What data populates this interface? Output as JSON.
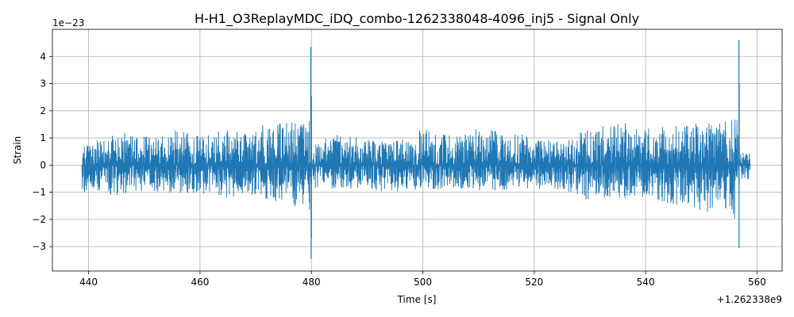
{
  "chart_data": {
    "type": "line",
    "title": "H-H1_O3ReplayMDC_iDQ_combo-1262338048-4096_inj5 - Signal Only",
    "xlabel": "Time [s]",
    "ylabel": "Strain",
    "x_offset_label": "+1.262338e9",
    "y_scale_label": "1e−23",
    "xlim": [
      433.5,
      564.5
    ],
    "ylim": [
      -3.9,
      5.0
    ],
    "x_ticks": [
      440,
      460,
      480,
      500,
      520,
      540,
      560
    ],
    "x_tick_labels": [
      "440",
      "460",
      "480",
      "500",
      "520",
      "540",
      "560"
    ],
    "y_ticks": [
      -3,
      -2,
      -1,
      0,
      1,
      2,
      3,
      4
    ],
    "y_tick_labels": [
      "−3",
      "−2",
      "−1",
      "0",
      "1",
      "2",
      "3",
      "4"
    ],
    "grid": true,
    "line_color": "#1f77b4",
    "series": [
      {
        "x_start": 438.8,
        "x_end": 558.8,
        "envelope": [
          {
            "x": 438.8,
            "max": 0.7,
            "min": -1.0
          },
          {
            "x": 442,
            "max": 0.95,
            "min": -0.95
          },
          {
            "x": 445,
            "max": 1.25,
            "min": -1.2
          },
          {
            "x": 450,
            "max": 1.05,
            "min": -0.95
          },
          {
            "x": 455,
            "max": 1.3,
            "min": -1.05
          },
          {
            "x": 460,
            "max": 1.1,
            "min": -1.05
          },
          {
            "x": 465,
            "max": 1.35,
            "min": -1.25
          },
          {
            "x": 470,
            "max": 1.45,
            "min": -1.1
          },
          {
            "x": 475,
            "max": 1.55,
            "min": -1.45
          },
          {
            "x": 478,
            "max": 1.65,
            "min": -1.55
          },
          {
            "x": 479.8,
            "max": 1.7,
            "min": -1.7
          },
          {
            "x": 480.05,
            "max": 0.85,
            "min": -0.85
          },
          {
            "x": 485,
            "max": 1.2,
            "min": -0.9
          },
          {
            "x": 490,
            "max": 0.95,
            "min": -0.95
          },
          {
            "x": 495,
            "max": 0.95,
            "min": -1.0
          },
          {
            "x": 500,
            "max": 1.35,
            "min": -0.95
          },
          {
            "x": 505,
            "max": 1.1,
            "min": -0.95
          },
          {
            "x": 510,
            "max": 1.35,
            "min": -1.0
          },
          {
            "x": 515,
            "max": 1.3,
            "min": -0.9
          },
          {
            "x": 520,
            "max": 1.0,
            "min": -0.85
          },
          {
            "x": 525,
            "max": 0.9,
            "min": -0.95
          },
          {
            "x": 530,
            "max": 1.45,
            "min": -1.35
          },
          {
            "x": 535,
            "max": 1.6,
            "min": -1.25
          },
          {
            "x": 540,
            "max": 1.35,
            "min": -1.3
          },
          {
            "x": 545,
            "max": 1.45,
            "min": -1.45
          },
          {
            "x": 550,
            "max": 1.55,
            "min": -1.7
          },
          {
            "x": 554,
            "max": 1.6,
            "min": -1.9
          },
          {
            "x": 556.6,
            "max": 1.7,
            "min": -2.0
          },
          {
            "x": 556.9,
            "max": 0.6,
            "min": -0.6
          },
          {
            "x": 558.8,
            "max": 0.45,
            "min": -0.55
          }
        ],
        "spikes": [
          {
            "x": 479.9,
            "value": 4.35
          },
          {
            "x": 480.0,
            "value": 2.55
          },
          {
            "x": 479.95,
            "value": -3.45
          },
          {
            "x": 480.0,
            "value": -2.7
          },
          {
            "x": 556.75,
            "value": 4.6
          },
          {
            "x": 556.8,
            "value": 3.0
          },
          {
            "x": 556.78,
            "value": -3.05
          }
        ]
      }
    ]
  }
}
